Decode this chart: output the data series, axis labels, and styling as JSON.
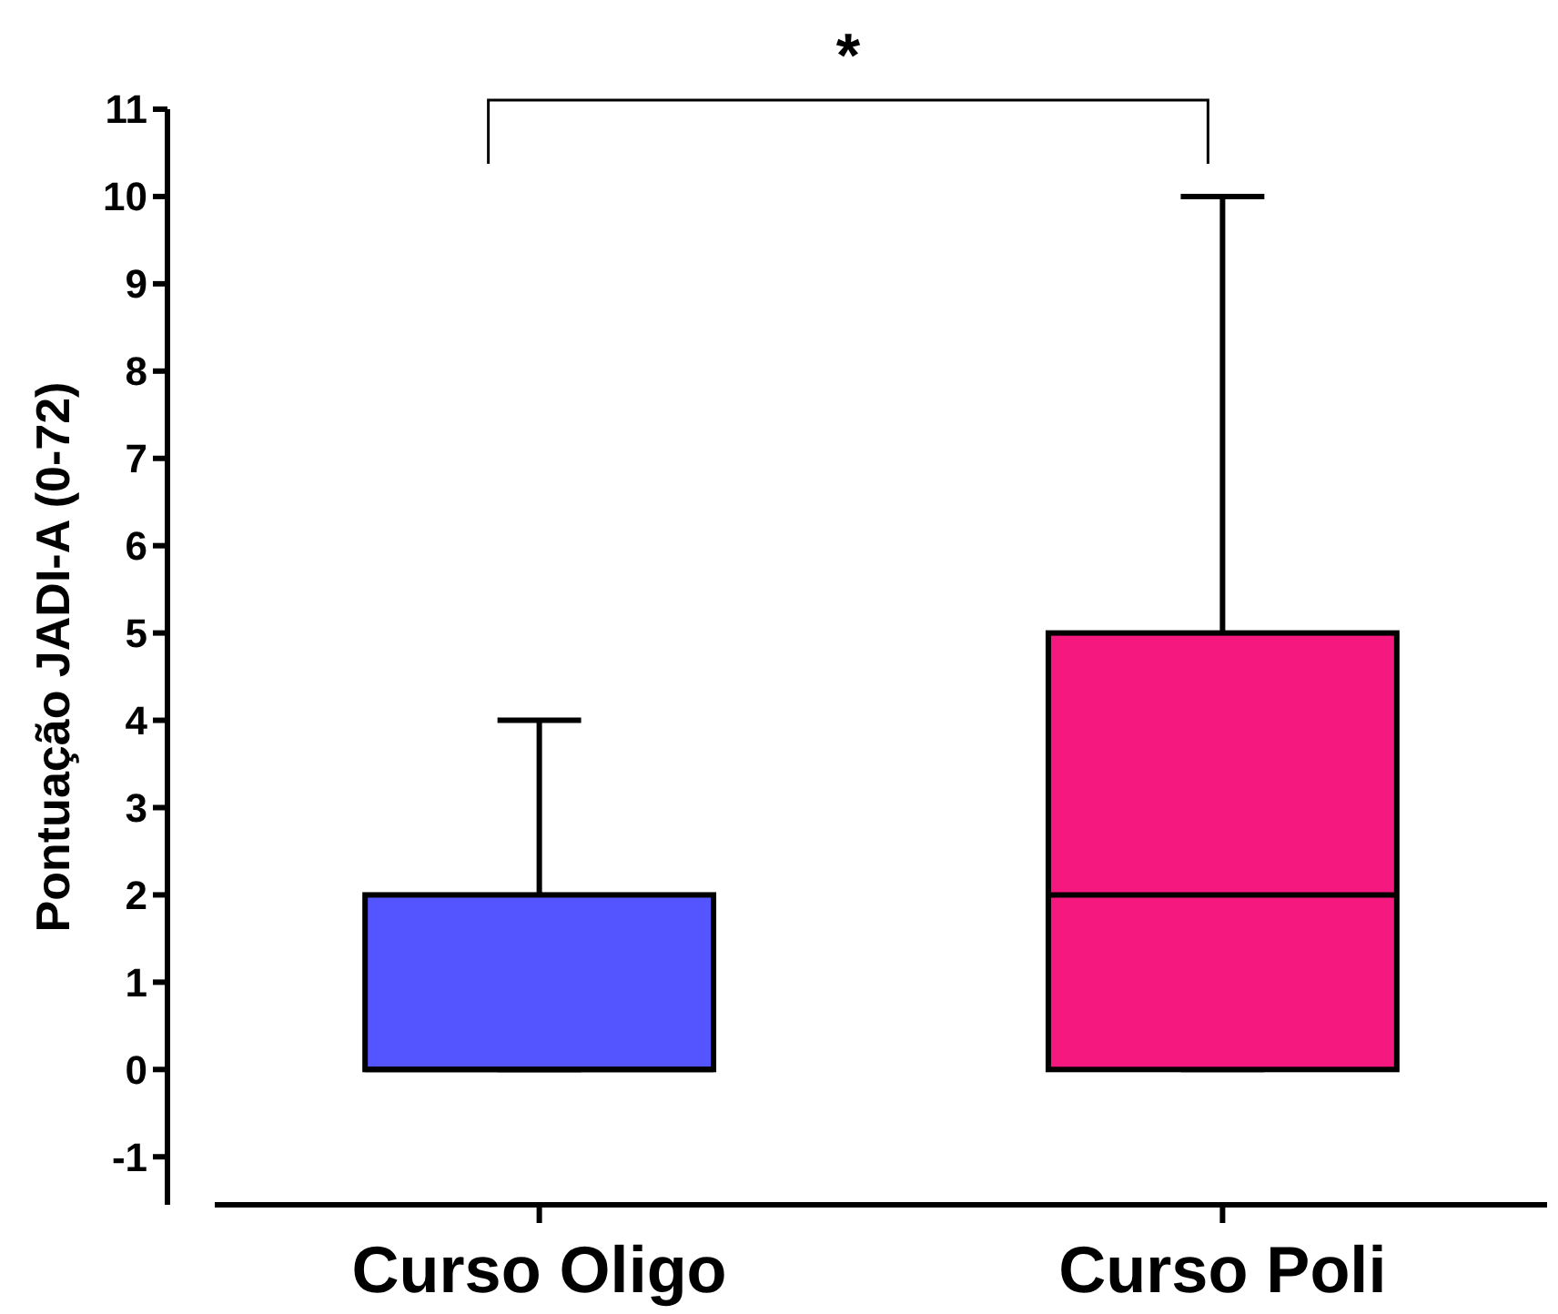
{
  "chart_data": {
    "type": "box",
    "ylabel": "Pontuação JADI-A (0-72)",
    "categories": [
      "Curso Oligo",
      "Curso Poli"
    ],
    "colors": [
      "#5555ff",
      "#f5187f"
    ],
    "boxes": [
      {
        "low": 0,
        "q1": 0,
        "median": 0,
        "q3": 2,
        "high": 4
      },
      {
        "low": 0,
        "q1": 0,
        "median": 2,
        "q3": 5,
        "high": 10
      }
    ],
    "ylim": [
      -1.55,
      11
    ],
    "yticks": [
      -1,
      0,
      1,
      2,
      3,
      4,
      5,
      6,
      7,
      8,
      9,
      10,
      11
    ],
    "grid": false,
    "annotations": [
      "*"
    ]
  }
}
